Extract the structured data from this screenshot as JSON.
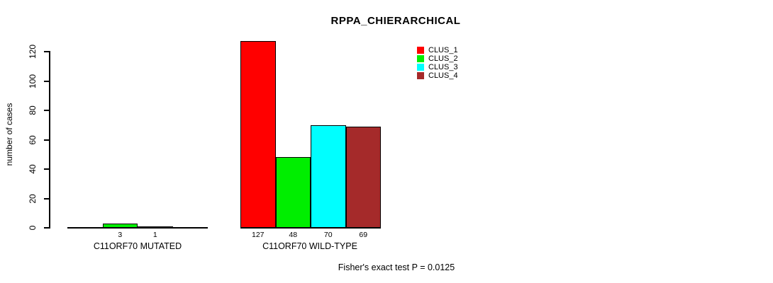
{
  "chart_data": {
    "type": "bar",
    "title": "RPPA_CHIERARCHICAL",
    "ylabel": "number of cases",
    "xlabel": "",
    "ylim": [
      0,
      120
    ],
    "yticks": [
      0,
      20,
      40,
      60,
      80,
      100,
      120
    ],
    "grid": false,
    "legend_position": "top-right",
    "series": [
      {
        "name": "CLUS_1",
        "color": "#FF0000"
      },
      {
        "name": "CLUS_2",
        "color": "#00EE00"
      },
      {
        "name": "CLUS_3",
        "color": "#00FFFF"
      },
      {
        "name": "CLUS_4",
        "color": "#A52A2A"
      }
    ],
    "groups": [
      {
        "label": "C11ORF70 MUTATED",
        "values": [
          0,
          3,
          1,
          0
        ],
        "value_labels": [
          "",
          "3",
          "1",
          ""
        ]
      },
      {
        "label": "C11ORF70 WILD-TYPE",
        "values": [
          127,
          48,
          70,
          69
        ],
        "value_labels": [
          "127",
          "48",
          "70",
          "69"
        ]
      }
    ],
    "annotation": "Fisher's exact test P = 0.0125"
  }
}
